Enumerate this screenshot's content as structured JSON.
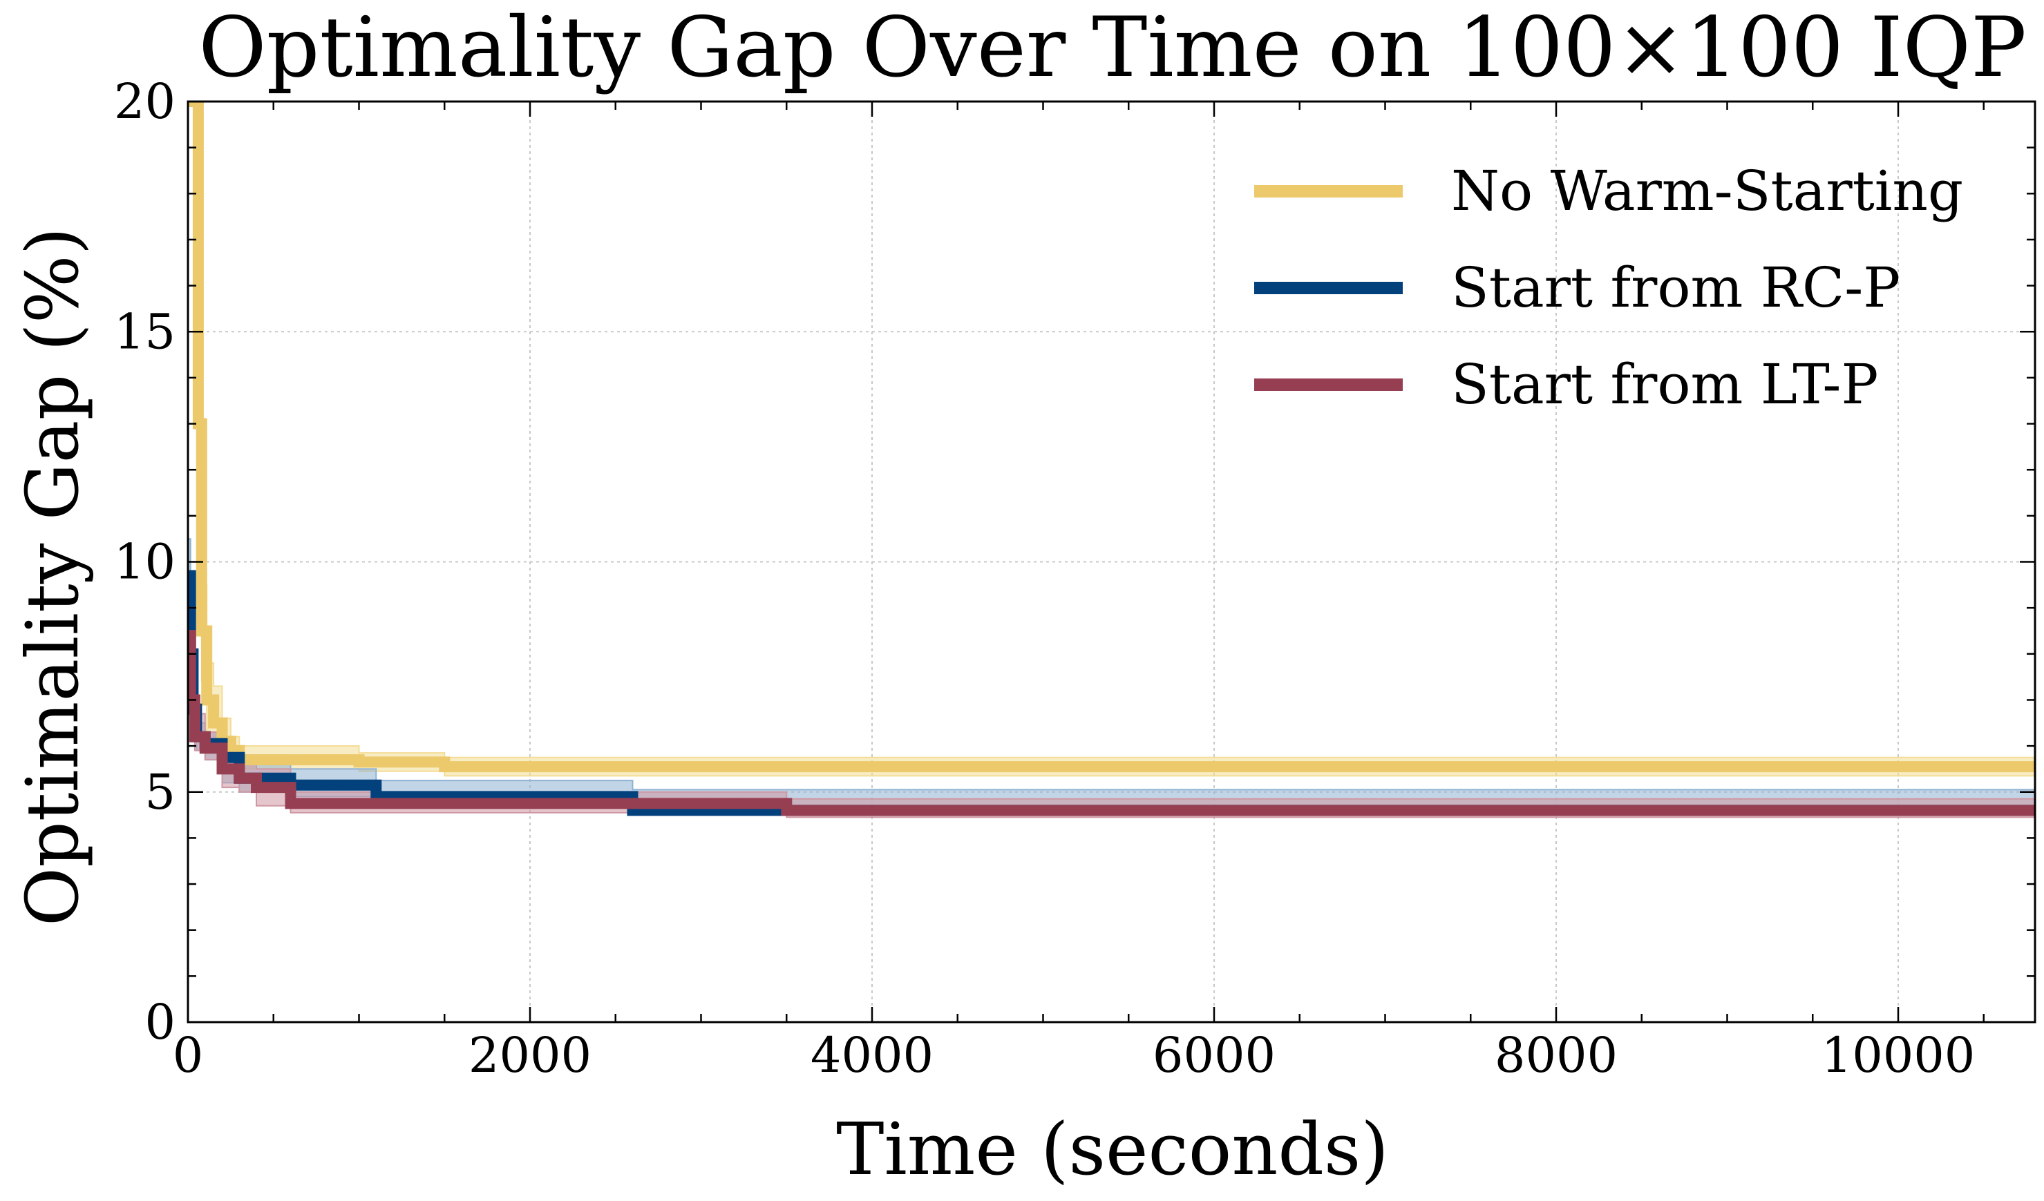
{
  "chart_data": {
    "type": "line",
    "title": "Optimality Gap Over Time on 100×100 IQP",
    "xlabel": "Time (seconds)",
    "ylabel": "Optimality Gap (%)",
    "xlim": [
      0,
      10800
    ],
    "ylim": [
      0,
      20
    ],
    "x_ticks": [
      0,
      2000,
      4000,
      6000,
      8000,
      10000
    ],
    "x_tick_labels": [
      "0",
      "2000",
      "4000",
      "6000",
      "8000",
      "10000"
    ],
    "y_ticks": [
      0,
      5,
      10,
      15,
      20
    ],
    "y_tick_labels": [
      "0",
      "5",
      "10",
      "15",
      "20"
    ],
    "grid": true,
    "legend_position": "top-right",
    "step_lines": true,
    "series": [
      {
        "name": "No Warm-Starting",
        "color": "#ecc96a",
        "band_color": "#f3dc94",
        "x": [
          0,
          40,
          60,
          80,
          110,
          150,
          200,
          250,
          300,
          1000,
          1500,
          10800
        ],
        "y": [
          20,
          20,
          13,
          8.5,
          7.0,
          6.5,
          6.1,
          5.9,
          5.7,
          5.65,
          5.55,
          5.55
        ],
        "lower": [
          20,
          20,
          11,
          7.4,
          6.3,
          6.0,
          5.8,
          5.6,
          5.5,
          5.45,
          5.35,
          5.35
        ],
        "upper": [
          20,
          20,
          15,
          9.5,
          7.8,
          7.3,
          6.6,
          6.2,
          6.0,
          5.85,
          5.75,
          5.75
        ]
      },
      {
        "name": "Start from RC-P",
        "color": "#02417c",
        "band_color": "#8fb2d4",
        "x": [
          0,
          15,
          30,
          50,
          100,
          200,
          300,
          600,
          1100,
          2600,
          10800
        ],
        "y": [
          9.7,
          8.0,
          6.8,
          6.2,
          6.05,
          5.75,
          5.3,
          5.15,
          4.9,
          4.6,
          4.6
        ],
        "lower": [
          8.5,
          7.0,
          6.2,
          5.9,
          5.7,
          5.2,
          5.0,
          4.9,
          4.65,
          4.55,
          4.55
        ],
        "upper": [
          10.5,
          8.8,
          7.4,
          6.5,
          6.3,
          6.0,
          5.8,
          5.5,
          5.25,
          5.05,
          5.05
        ]
      },
      {
        "name": "Start from LT-P",
        "color": "#973f52",
        "band_color": "#cf97a3",
        "x": [
          0,
          15,
          40,
          100,
          200,
          300,
          400,
          600,
          3500,
          10800
        ],
        "y": [
          8.4,
          7.0,
          6.2,
          5.95,
          5.5,
          5.3,
          5.1,
          4.75,
          4.6,
          4.6
        ],
        "lower": [
          7.4,
          6.3,
          5.9,
          5.7,
          5.1,
          5.0,
          4.7,
          4.55,
          4.45,
          4.45
        ],
        "upper": [
          9.2,
          7.8,
          6.7,
          6.3,
          6.0,
          5.7,
          5.5,
          5.0,
          4.85,
          4.85
        ]
      }
    ]
  }
}
